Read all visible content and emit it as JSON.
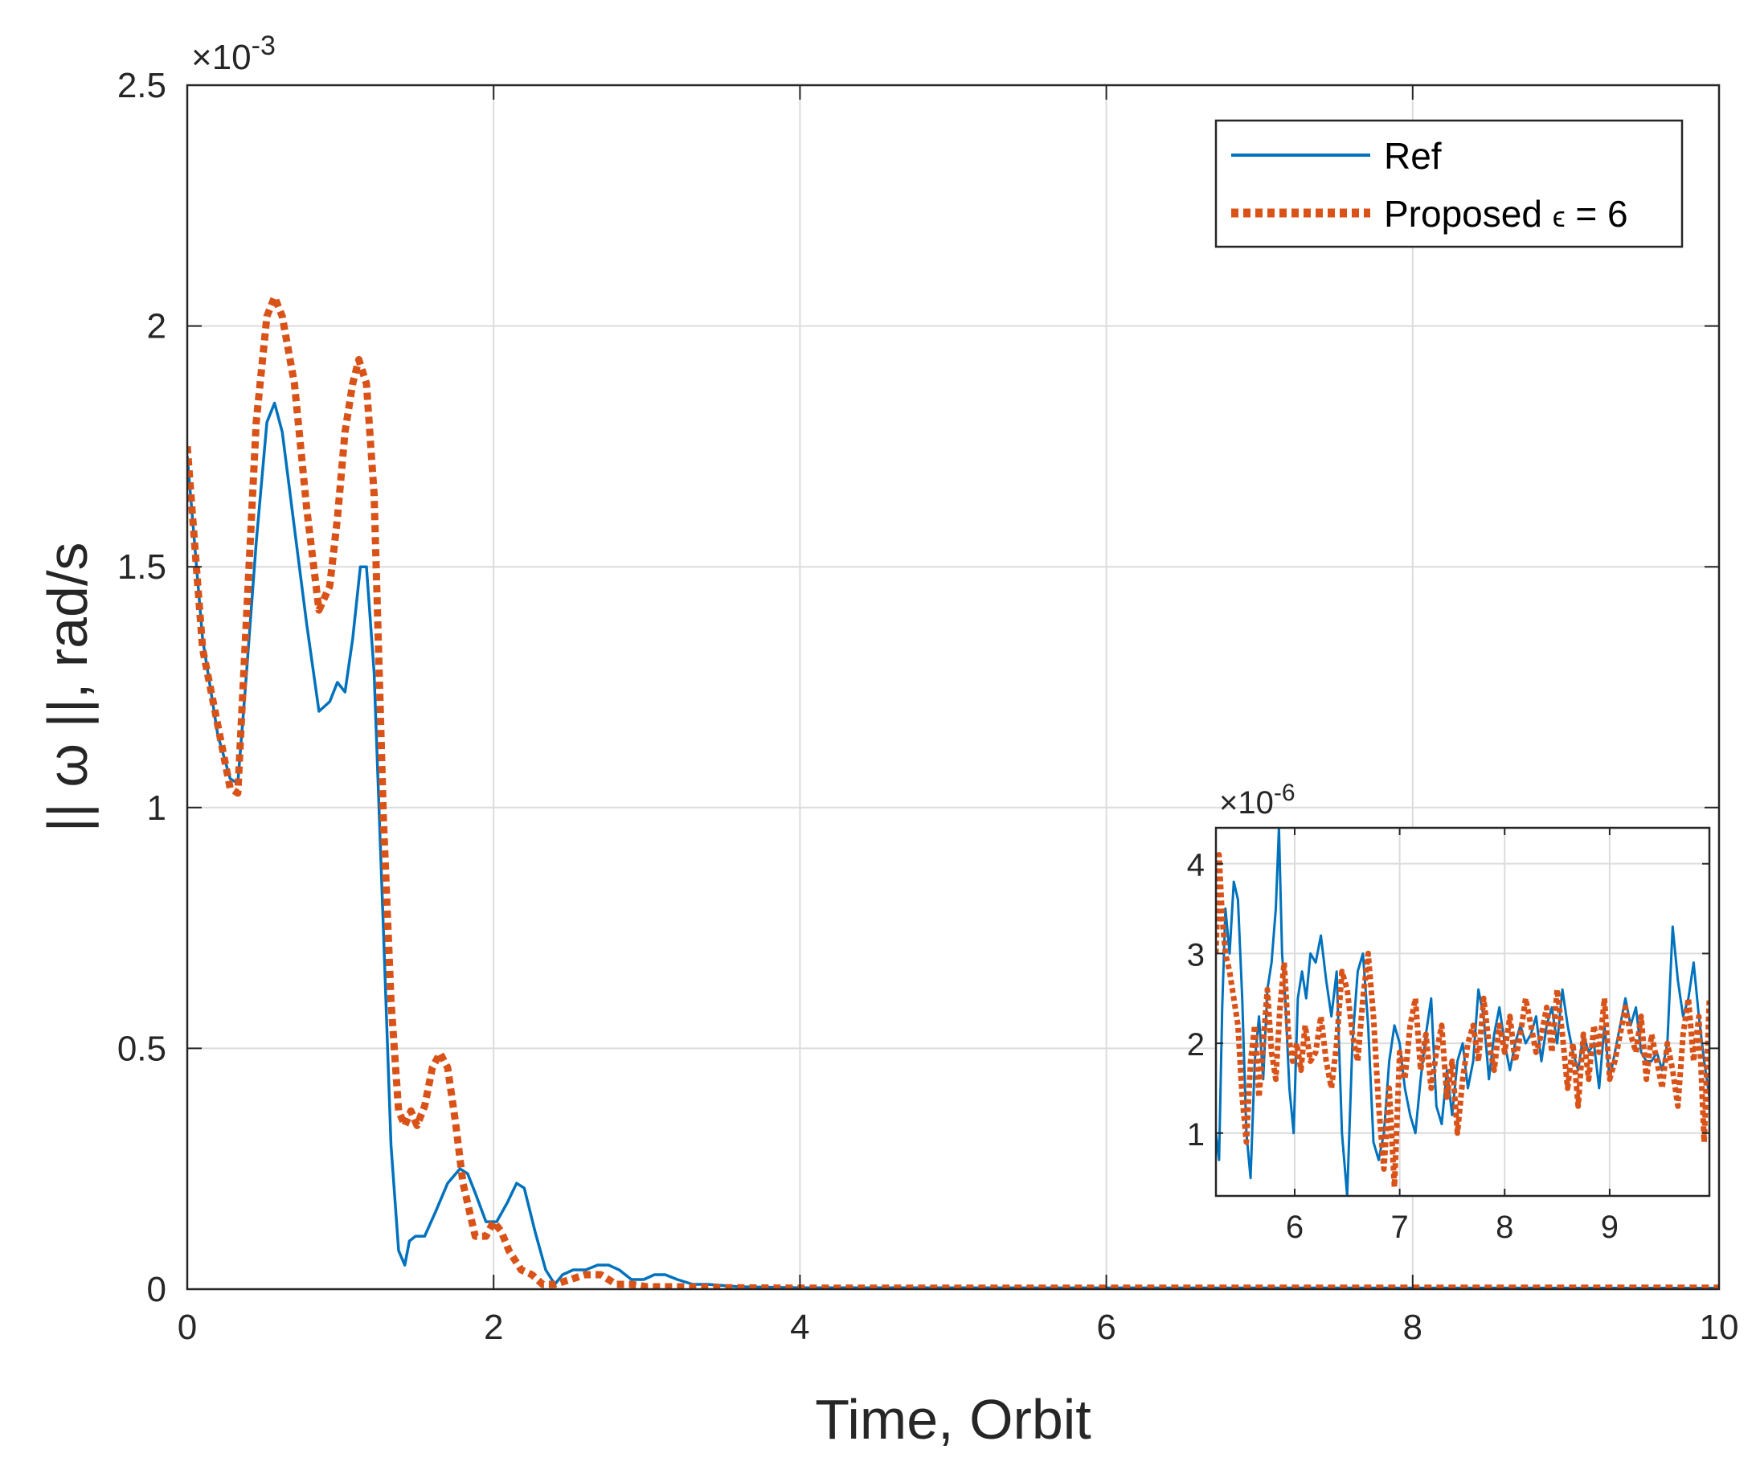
{
  "chart_data": [
    {
      "id": "main",
      "type": "line",
      "xlabel": "Time, Orbit",
      "ylabel": "|| ω ||, rad/s",
      "xlim": [
        0,
        10
      ],
      "ylim": [
        0,
        0.0025
      ],
      "xticks": [
        0,
        2,
        4,
        6,
        8,
        10
      ],
      "xtick_labels": [
        "0",
        "2",
        "4",
        "6",
        "8",
        "10"
      ],
      "yticks": [
        0,
        0.0005,
        0.001,
        0.0015,
        0.002,
        0.0025
      ],
      "ytick_labels": [
        "0",
        "0.5",
        "1",
        "1.5",
        "2",
        "2.5"
      ],
      "y_multiplier_base": "×10",
      "y_multiplier_exp": "-3",
      "grid": true,
      "legend": {
        "position": "top-right",
        "entries": [
          {
            "label": "Ref",
            "color": "#0072BD",
            "style": "solid"
          },
          {
            "label_prefix": "Proposed ",
            "label_symbol": "ϵ",
            "label_suffix": " = 6",
            "color": "#D95319",
            "style": "dotted"
          }
        ]
      },
      "series": [
        {
          "name": "Ref",
          "color": "#0072BD",
          "style": "solid",
          "x": [
            0,
            0.1,
            0.2,
            0.28,
            0.33,
            0.38,
            0.45,
            0.52,
            0.57,
            0.62,
            0.7,
            0.78,
            0.86,
            0.93,
            0.98,
            1.03,
            1.08,
            1.13,
            1.17,
            1.22,
            1.28,
            1.33,
            1.38,
            1.42,
            1.45,
            1.49,
            1.55,
            1.62,
            1.7,
            1.78,
            1.83,
            1.88,
            1.95,
            2.02,
            2.09,
            2.15,
            2.2,
            2.27,
            2.34,
            2.4,
            2.45,
            2.52,
            2.6,
            2.68,
            2.75,
            2.82,
            2.9,
            2.98,
            3.05,
            3.12,
            3.2,
            3.3,
            3.4,
            3.6,
            3.8,
            4.0,
            10
          ],
          "y": [
            0.00173,
            0.00135,
            0.00115,
            0.00106,
            0.00105,
            0.00125,
            0.00155,
            0.0018,
            0.00184,
            0.00178,
            0.00158,
            0.00138,
            0.0012,
            0.00122,
            0.00126,
            0.00124,
            0.00135,
            0.0015,
            0.0015,
            0.00128,
            0.00075,
            0.0003,
            8e-05,
            5e-05,
            0.0001,
            0.00011,
            0.00011,
            0.00016,
            0.00022,
            0.00025,
            0.00024,
            0.0002,
            0.00014,
            0.00014,
            0.00018,
            0.00022,
            0.00021,
            0.00012,
            4e-05,
            1e-05,
            3e-05,
            4e-05,
            4e-05,
            5e-05,
            5e-05,
            4e-05,
            2e-05,
            2e-05,
            3e-05,
            3e-05,
            2e-05,
            1e-05,
            1e-05,
            5e-06,
            4e-06,
            3e-06,
            2e-06
          ]
        },
        {
          "name": "Proposed ϵ = 6",
          "color": "#D95319",
          "style": "dotted",
          "x": [
            0,
            0.1,
            0.2,
            0.28,
            0.33,
            0.38,
            0.45,
            0.52,
            0.57,
            0.62,
            0.7,
            0.78,
            0.86,
            0.93,
            0.98,
            1.03,
            1.08,
            1.12,
            1.17,
            1.22,
            1.28,
            1.33,
            1.38,
            1.42,
            1.46,
            1.5,
            1.55,
            1.6,
            1.65,
            1.7,
            1.75,
            1.8,
            1.88,
            1.95,
            2.0,
            2.05,
            2.1,
            2.18,
            2.25,
            2.32,
            2.4,
            2.5,
            2.6,
            2.7,
            2.8,
            2.9,
            3.0,
            3.2,
            3.5,
            4.0,
            10
          ],
          "y": [
            0.00175,
            0.00133,
            0.00117,
            0.00104,
            0.00103,
            0.00135,
            0.0018,
            0.00202,
            0.00206,
            0.00202,
            0.00188,
            0.00162,
            0.00141,
            0.00146,
            0.0016,
            0.00178,
            0.00188,
            0.00193,
            0.00188,
            0.00165,
            0.00098,
            0.0006,
            0.00037,
            0.00034,
            0.00037,
            0.00034,
            0.00038,
            0.00046,
            0.00049,
            0.00046,
            0.00035,
            0.00022,
            0.00011,
            0.00011,
            0.00014,
            0.00012,
            8e-05,
            4e-05,
            3e-05,
            1e-05,
            1e-05,
            2e-05,
            3e-05,
            3e-05,
            1e-05,
            1e-05,
            5e-06,
            5e-06,
            3e-06,
            2e-06,
            2e-06
          ]
        }
      ]
    },
    {
      "id": "inset",
      "type": "line",
      "xlim": [
        5.25,
        9.95
      ],
      "ylim": [
        3e-07,
        4.4e-06
      ],
      "xticks": [
        6,
        7,
        8,
        9
      ],
      "xtick_labels": [
        "6",
        "7",
        "8",
        "9"
      ],
      "yticks": [
        1e-06,
        2e-06,
        3e-06,
        4e-06
      ],
      "ytick_labels": [
        "1",
        "2",
        "3",
        "4"
      ],
      "y_multiplier_base": "×10",
      "y_multiplier_exp": "-6",
      "grid": true,
      "series": [
        {
          "name": "Ref",
          "color": "#0072BD",
          "style": "solid",
          "x": [
            5.25,
            5.28,
            5.31,
            5.34,
            5.38,
            5.42,
            5.46,
            5.5,
            5.54,
            5.58,
            5.62,
            5.66,
            5.7,
            5.74,
            5.78,
            5.82,
            5.85,
            5.88,
            5.91,
            5.95,
            5.99,
            6.03,
            6.07,
            6.11,
            6.15,
            6.2,
            6.25,
            6.3,
            6.35,
            6.4,
            6.45,
            6.5,
            6.55,
            6.6,
            6.65,
            6.7,
            6.75,
            6.8,
            6.85,
            6.9,
            6.95,
            7.0,
            7.05,
            7.1,
            7.15,
            7.2,
            7.25,
            7.3,
            7.35,
            7.4,
            7.45,
            7.5,
            7.55,
            7.6,
            7.65,
            7.7,
            7.75,
            7.8,
            7.85,
            7.9,
            7.95,
            8.0,
            8.05,
            8.1,
            8.15,
            8.2,
            8.25,
            8.3,
            8.35,
            8.4,
            8.45,
            8.5,
            8.55,
            8.6,
            8.65,
            8.7,
            8.75,
            8.8,
            8.85,
            8.9,
            8.95,
            9.0,
            9.05,
            9.1,
            9.15,
            9.2,
            9.25,
            9.3,
            9.35,
            9.4,
            9.45,
            9.5,
            9.55,
            9.6,
            9.65,
            9.7,
            9.75,
            9.8,
            9.85,
            9.9,
            9.95
          ],
          "y": [
            1e-06,
            7e-07,
            2.4e-06,
            3.5e-06,
            3e-06,
            3.8e-06,
            3.6e-06,
            2.5e-06,
            1e-06,
            5e-07,
            1.8e-06,
            2.3e-06,
            1.6e-06,
            2.6e-06,
            2.9e-06,
            3.5e-06,
            4.4e-06,
            3e-06,
            2.5e-06,
            1.5e-06,
            1e-06,
            2.5e-06,
            2.8e-06,
            2.5e-06,
            3e-06,
            2.9e-06,
            3.2e-06,
            2.7e-06,
            2.3e-06,
            2.8e-06,
            1e-06,
            3e-07,
            2e-06,
            2.8e-06,
            3e-06,
            2.2e-06,
            9e-07,
            7e-07,
            1e-06,
            1.8e-06,
            2.2e-06,
            2e-06,
            1.5e-06,
            1.2e-06,
            1e-06,
            1.6e-06,
            2.1e-06,
            2.5e-06,
            1.3e-06,
            1.1e-06,
            1.7e-06,
            1.2e-06,
            1.8e-06,
            2e-06,
            1.5e-06,
            1.8e-06,
            2.6e-06,
            2.3e-06,
            1.6e-06,
            2.1e-06,
            2.4e-06,
            2e-06,
            1.7e-06,
            2e-06,
            2.2e-06,
            2e-06,
            2.1e-06,
            2.3e-06,
            1.8e-06,
            2.2e-06,
            2.4e-06,
            2e-06,
            2.6e-06,
            2.2e-06,
            1.9e-06,
            1.7e-06,
            2.1e-06,
            1.9e-06,
            2e-06,
            1.5e-06,
            2.2e-06,
            1.6e-06,
            1.9e-06,
            2.2e-06,
            2.5e-06,
            2.2e-06,
            2.4e-06,
            1.9e-06,
            1.8e-06,
            1.8e-06,
            1.9e-06,
            1.7e-06,
            2e-06,
            3.3e-06,
            2.7e-06,
            2.3e-06,
            2.5e-06,
            2.9e-06,
            2.3e-06,
            1.8e-06,
            1.4e-06
          ]
        },
        {
          "name": "Proposed ϵ = 6",
          "color": "#D95319",
          "style": "dotted",
          "x": [
            5.25,
            5.28,
            5.31,
            5.34,
            5.38,
            5.42,
            5.46,
            5.5,
            5.54,
            5.58,
            5.62,
            5.66,
            5.7,
            5.74,
            5.78,
            5.82,
            5.86,
            5.9,
            5.94,
            5.98,
            6.02,
            6.06,
            6.1,
            6.15,
            6.2,
            6.25,
            6.3,
            6.35,
            6.4,
            6.45,
            6.5,
            6.55,
            6.6,
            6.65,
            6.7,
            6.75,
            6.8,
            6.85,
            6.9,
            6.95,
            7.0,
            7.05,
            7.1,
            7.15,
            7.2,
            7.25,
            7.3,
            7.35,
            7.4,
            7.45,
            7.5,
            7.55,
            7.6,
            7.65,
            7.7,
            7.75,
            7.8,
            7.85,
            7.9,
            7.95,
            8.0,
            8.05,
            8.1,
            8.15,
            8.2,
            8.25,
            8.3,
            8.35,
            8.4,
            8.45,
            8.5,
            8.55,
            8.6,
            8.65,
            8.7,
            8.75,
            8.8,
            8.85,
            8.9,
            8.95,
            9.0,
            9.05,
            9.1,
            9.15,
            9.2,
            9.25,
            9.3,
            9.35,
            9.4,
            9.45,
            9.5,
            9.55,
            9.6,
            9.65,
            9.7,
            9.75,
            9.8,
            9.85,
            9.9,
            9.95
          ],
          "y": [
            3e-06,
            4.1e-06,
            3.4e-06,
            3e-06,
            2.8e-06,
            2.5e-06,
            2.2e-06,
            1.4e-06,
            9e-07,
            1.8e-06,
            2.2e-06,
            1.4e-06,
            2e-06,
            2.6e-06,
            1.9e-06,
            1.6e-06,
            2.4e-06,
            2.9e-06,
            2.1e-06,
            1.8e-06,
            2e-06,
            1.7e-06,
            2.2e-06,
            1.8e-06,
            1.9e-06,
            2.3e-06,
            1.8e-06,
            1.5e-06,
            2e-06,
            2.8e-06,
            2.6e-06,
            2.1e-06,
            1.8e-06,
            2.5e-06,
            3e-06,
            2.3e-06,
            1.3e-06,
            6e-07,
            1.5e-06,
            4e-07,
            1.9e-06,
            1.6e-06,
            2.2e-06,
            2.5e-06,
            1.7e-06,
            2.1e-06,
            1.5e-06,
            1.9e-06,
            2.2e-06,
            1.4e-06,
            1.8e-06,
            1e-06,
            1.6e-06,
            2e-06,
            2.2e-06,
            1.8e-06,
            2.5e-06,
            2e-06,
            1.7e-06,
            2.2e-06,
            1.9e-06,
            2.3e-06,
            1.8e-06,
            2.1e-06,
            2.5e-06,
            2.2e-06,
            1.9e-06,
            2.1e-06,
            2.4e-06,
            1.9e-06,
            2.6e-06,
            2.1e-06,
            1.5e-06,
            2e-06,
            1.3e-06,
            2.1e-06,
            1.6e-06,
            2.2e-06,
            1.9e-06,
            2.5e-06,
            1.6e-06,
            1.8e-06,
            2.1e-06,
            2.4e-06,
            2.1e-06,
            1.9e-06,
            2.3e-06,
            1.6e-06,
            2.1e-06,
            1.8e-06,
            1.5e-06,
            2e-06,
            1.7e-06,
            1.3e-06,
            2.1e-06,
            2.5e-06,
            1.8e-06,
            2.3e-06,
            9e-07,
            2.5e-06
          ]
        }
      ]
    }
  ]
}
